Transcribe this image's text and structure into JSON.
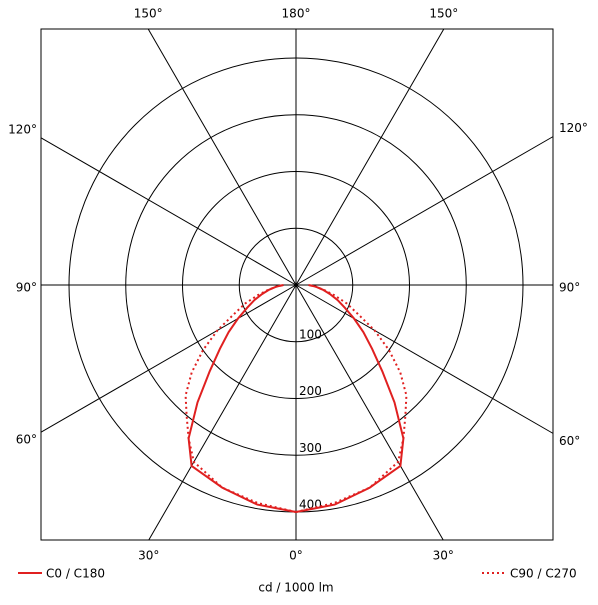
{
  "chart_data": {
    "type": "polar",
    "x": [
      0,
      10,
      20,
      30,
      35,
      40,
      45,
      50,
      55,
      60,
      65,
      70,
      75,
      80,
      85,
      90
    ],
    "series": [
      {
        "name": "C0 / C180",
        "color": "#e02020",
        "dash": "solid",
        "values": [
          400,
          393,
          380,
          368,
          330,
          270,
          215,
          175,
          145,
          118,
          95,
          78,
          62,
          48,
          35,
          22
        ]
      },
      {
        "name": "C90 / C270",
        "color": "#e02020",
        "dash": "dotted",
        "values": [
          400,
          390,
          380,
          360,
          330,
          300,
          275,
          240,
          200,
          160,
          120,
          95,
          70,
          50,
          35,
          22
        ]
      }
    ],
    "rlim": [
      0,
      400
    ],
    "rticks": [
      100,
      200,
      300,
      400
    ],
    "angle_ticks": [
      {
        "value": -150,
        "label": "150°"
      },
      {
        "value": 180,
        "label": "180°"
      },
      {
        "value": 150,
        "label": "150°"
      },
      {
        "value": -120,
        "label": "120°"
      },
      {
        "value": -90,
        "label": "90°"
      },
      {
        "value": -60,
        "label": "60°"
      },
      {
        "value": 120,
        "label": "120°"
      },
      {
        "value": 90,
        "label": "90°"
      },
      {
        "value": 60,
        "label": "60°"
      },
      {
        "value": -30,
        "label": "30°"
      },
      {
        "value": 0,
        "label": "0°"
      },
      {
        "value": 30,
        "label": "30°"
      }
    ],
    "axis_label": "cd / 1000 lm"
  }
}
